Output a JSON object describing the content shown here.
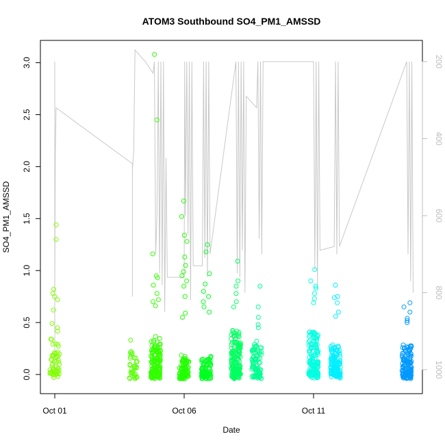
{
  "chart_data": {
    "type": "scatter",
    "title": "ATOM3 Southbound SO4_PM1_AMSSD",
    "xlabel": "Date",
    "ylabel": "SO4_PM1_AMSSD",
    "x_ticks": [
      "Oct 01",
      "Oct 06",
      "Oct 11"
    ],
    "xlim_days": [
      0.0,
      14.6
    ],
    "ylim": [
      -0.06,
      3.2
    ],
    "y_ticks": [
      "0.0",
      "0.5",
      "1.0",
      "1.5",
      "2.0",
      "2.5",
      "3.0"
    ],
    "y_right_ticks": [
      "200",
      "400",
      "600",
      "800",
      "1000"
    ],
    "y_right_reversed": true,
    "y_right_lim": [
      1000,
      200
    ],
    "grid": false,
    "marker": "open-circle",
    "color_scale": "chartreuse to azure by time",
    "clusters": [
      {
        "day": 0.0,
        "color": "#80ff00",
        "count": 55,
        "median": 0.18,
        "max_outliers": [
          1.44,
          1.3,
          0.82,
          0.78,
          0.75,
          0.72,
          0.62,
          0.49,
          0.45
        ]
      },
      {
        "day": 3.0,
        "color": "#55ff00",
        "count": 30,
        "median": 0.1,
        "max_outliers": [
          0.33,
          0.22,
          0.2
        ]
      },
      {
        "day": 3.9,
        "color": "#33ff00",
        "count": 160,
        "median": 0.15,
        "max_outliers": [
          3.08,
          2.45,
          1.16,
          0.95,
          0.93,
          0.86,
          0.78,
          0.72,
          0.7,
          0.66
        ]
      },
      {
        "day": 5.0,
        "color": "#22ff00",
        "count": 90,
        "median": 0.08,
        "max_outliers": [
          1.67,
          1.52,
          1.34,
          1.28,
          1.13,
          1.05,
          0.99,
          0.95,
          0.9,
          0.85,
          0.75,
          0.59,
          0.55
        ]
      },
      {
        "day": 5.85,
        "color": "#00ff22",
        "count": 100,
        "median": 0.08,
        "max_outliers": [
          1.25,
          1.18,
          0.97,
          0.87,
          0.8,
          0.75,
          0.7,
          0.65,
          0.6
        ]
      },
      {
        "day": 7.0,
        "color": "#00ff60",
        "count": 160,
        "median": 0.18,
        "max_outliers": [
          1.09,
          0.9,
          0.85,
          0.78,
          0.7,
          0.65
        ]
      },
      {
        "day": 7.8,
        "color": "#00ff90",
        "count": 90,
        "median": 0.14,
        "max_outliers": [
          0.85,
          0.65,
          0.55,
          0.48,
          0.45
        ]
      },
      {
        "day": 10.0,
        "color": "#00ffe0",
        "count": 140,
        "median": 0.18,
        "max_outliers": [
          1.01,
          0.9,
          0.85,
          0.83,
          0.78,
          0.73,
          0.69
        ]
      },
      {
        "day": 10.85,
        "color": "#00f0ff",
        "count": 150,
        "median": 0.12,
        "max_outliers": [
          0.86,
          0.75,
          0.74,
          0.69,
          0.6,
          0.56
        ]
      },
      {
        "day": 13.6,
        "color": "#0099ff",
        "count": 140,
        "median": 0.13,
        "max_outliers": [
          0.69,
          0.65,
          0.6,
          0.54,
          0.52,
          0.5
        ]
      }
    ],
    "altitude_trace": {
      "name": "",
      "color": "#c8c8c8",
      "points": [
        [
          0.0,
          1000
        ],
        [
          0.0,
          200
        ],
        [
          0.0,
          800
        ],
        [
          0.02,
          440
        ],
        [
          0.05,
          320
        ],
        [
          3.0,
          465
        ],
        [
          3.0,
          810
        ],
        [
          3.0,
          480
        ],
        [
          3.05,
          435
        ],
        [
          3.1,
          170
        ],
        [
          3.5,
          200
        ],
        [
          3.8,
          230
        ],
        [
          3.85,
          200
        ],
        [
          3.9,
          700
        ],
        [
          3.95,
          600
        ],
        [
          4.0,
          200
        ],
        [
          4.05,
          750
        ],
        [
          4.1,
          200
        ],
        [
          4.15,
          780
        ],
        [
          4.2,
          200
        ],
        [
          4.25,
          850
        ],
        [
          4.3,
          450
        ],
        [
          4.35,
          760
        ],
        [
          5.0,
          760
        ],
        [
          5.02,
          200
        ],
        [
          5.05,
          600
        ],
        [
          5.1,
          200
        ],
        [
          5.15,
          650
        ],
        [
          5.2,
          200
        ],
        [
          5.25,
          820
        ],
        [
          5.3,
          200
        ],
        [
          5.35,
          730
        ],
        [
          5.7,
          730
        ],
        [
          5.75,
          200
        ],
        [
          5.8,
          710
        ],
        [
          5.85,
          200
        ],
        [
          5.9,
          760
        ],
        [
          5.95,
          200
        ],
        [
          6.0,
          700
        ],
        [
          7.0,
          200
        ],
        [
          7.05,
          750
        ],
        [
          7.1,
          200
        ],
        [
          7.15,
          760
        ],
        [
          7.2,
          200
        ],
        [
          7.25,
          690
        ],
        [
          7.3,
          200
        ],
        [
          7.35,
          800
        ],
        [
          7.4,
          290
        ],
        [
          7.8,
          320
        ],
        [
          7.85,
          200
        ],
        [
          7.9,
          660
        ],
        [
          7.95,
          200
        ],
        [
          8.0,
          700
        ],
        [
          8.05,
          200
        ],
        [
          10.0,
          200
        ],
        [
          10.05,
          740
        ],
        [
          10.1,
          200
        ],
        [
          10.15,
          790
        ],
        [
          10.2,
          200
        ],
        [
          10.25,
          690
        ],
        [
          10.8,
          680
        ],
        [
          10.85,
          200
        ],
        [
          10.9,
          700
        ],
        [
          10.95,
          200
        ],
        [
          11.0,
          680
        ],
        [
          13.6,
          200
        ],
        [
          13.65,
          700
        ],
        [
          13.7,
          200
        ],
        [
          13.75,
          770
        ],
        [
          13.8,
          200
        ],
        [
          13.85,
          800
        ]
      ]
    }
  }
}
